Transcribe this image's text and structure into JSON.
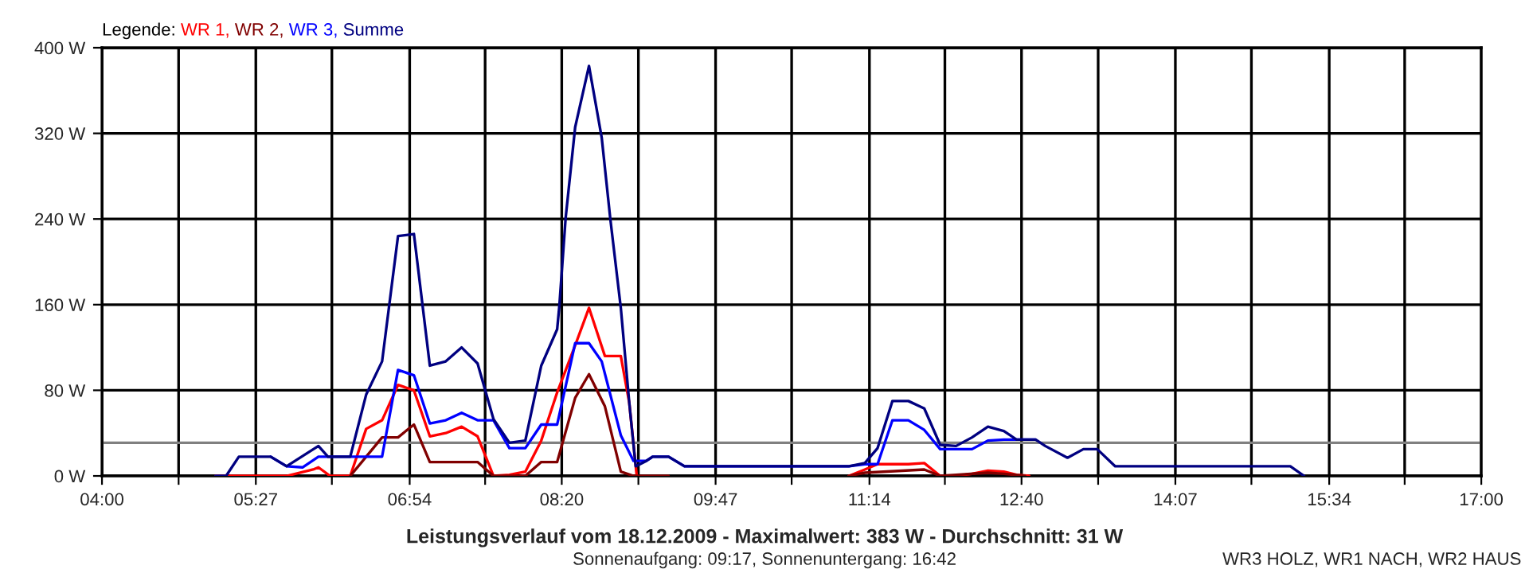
{
  "chart_data": {
    "type": "line",
    "title": "Leistungsverlauf vom 18.12.2009 - Maximalwert: 383 W - Durchschnitt: 31 W",
    "subtitle": "Sonnenaufgang: 09:17, Sonnenuntergang: 16:42",
    "annotations": [
      "WR3 HOLZ, WR1 NACH, WR2 HAUS"
    ],
    "legend_title": "Legende:",
    "legend": "top left",
    "grid": true,
    "marker": "none",
    "line_style": "solid",
    "xlim": [
      4,
      17
    ],
    "xticks": [
      {
        "value": 4,
        "label": "04:00"
      },
      {
        "value": 4.7222,
        "label": null
      },
      {
        "value": 5.45,
        "label": "05:27"
      },
      {
        "value": 6.1667,
        "label": null
      },
      {
        "value": 6.9,
        "label": "06:54"
      },
      {
        "value": 7.6111,
        "label": null
      },
      {
        "value": 8.3333,
        "label": "08:20"
      },
      {
        "value": 9.0556,
        "label": null
      },
      {
        "value": 9.7833,
        "label": "09:47"
      },
      {
        "value": 10.5,
        "label": null
      },
      {
        "value": 11.2333,
        "label": "11:14"
      },
      {
        "value": 11.9444,
        "label": null
      },
      {
        "value": 12.6667,
        "label": "12:40"
      },
      {
        "value": 13.3889,
        "label": null
      },
      {
        "value": 14.1167,
        "label": "14:07"
      },
      {
        "value": 14.8333,
        "label": null
      },
      {
        "value": 15.5667,
        "label": "15:34"
      },
      {
        "value": 16.2778,
        "label": null
      },
      {
        "value": 17,
        "label": "17:00"
      }
    ],
    "ylim": [
      0,
      400
    ],
    "yticks": [
      {
        "value": 0,
        "label": "0 W"
      },
      {
        "value": 80,
        "label": "80 W"
      },
      {
        "value": 160,
        "label": "160 W"
      },
      {
        "value": 240,
        "label": "240 W"
      },
      {
        "value": 320,
        "label": "320 W"
      },
      {
        "value": 400,
        "label": "400 W"
      }
    ],
    "ref_lines": [
      {
        "axis": "y",
        "value": 31,
        "color": "#808080"
      }
    ],
    "series": [
      {
        "name": "WR 1,",
        "color": "#ff0000",
        "x": [
          5.07,
          5.74,
          5.99,
          6.04,
          6.15,
          6.34,
          6.49,
          6.64,
          6.79,
          6.94,
          7.09,
          7.24,
          7.39,
          7.54,
          7.69,
          7.84,
          7.99,
          8.14,
          8.29,
          8.46,
          8.59,
          8.74,
          8.89,
          8.97,
          9.04,
          10.0,
          11.04,
          11.19,
          11.31,
          11.6,
          11.75,
          11.9,
          12.05,
          12.2,
          12.35,
          12.5,
          12.62,
          12.74
        ],
        "values": [
          0,
          0,
          6,
          8,
          0,
          0,
          44,
          52,
          85,
          80,
          37,
          40,
          46,
          37,
          0,
          1,
          4,
          33,
          78,
          122,
          157,
          112,
          112,
          68,
          0,
          null,
          0,
          6,
          11,
          11,
          12,
          0,
          0,
          2,
          5,
          4,
          1,
          0
        ]
      },
      {
        "name": "WR 2,",
        "color": "#800000",
        "x": [
          6.34,
          6.49,
          6.64,
          6.79,
          6.94,
          7.09,
          7.54,
          7.69,
          7.99,
          8.14,
          8.29,
          8.46,
          8.59,
          8.74,
          8.89,
          9.01,
          9.13,
          9.34,
          10.0,
          11.04,
          11.19,
          11.75,
          11.9,
          12.05,
          12.35,
          12.5,
          12.7
        ],
        "values": [
          0,
          18,
          36,
          36,
          48,
          13,
          13,
          0,
          0,
          13,
          13,
          73,
          95,
          65,
          4,
          0,
          0,
          0,
          null,
          0,
          3,
          6,
          0,
          1,
          3,
          2,
          0
        ]
      },
      {
        "name": "WR 3,",
        "color": "#0000ff",
        "x": [
          5.59,
          5.74,
          5.89,
          6.04,
          6.64,
          6.79,
          6.94,
          7.09,
          7.24,
          7.39,
          7.54,
          7.69,
          7.84,
          7.99,
          8.14,
          8.29,
          8.46,
          8.59,
          8.71,
          8.89,
          9.01,
          9.13,
          9.19,
          9.34,
          9.49,
          11.04,
          11.19,
          11.31,
          11.45,
          11.6,
          11.75,
          11.9,
          12.2,
          12.35,
          12.5,
          12.62,
          12.8
        ],
        "values": [
          18,
          9,
          8,
          18,
          18,
          99,
          94,
          49,
          52,
          59,
          52,
          52,
          26,
          26,
          48,
          48,
          124,
          124,
          107,
          38,
          14,
          14,
          18,
          18,
          9,
          9,
          11,
          11,
          52,
          52,
          43,
          25,
          25,
          33,
          34,
          34,
          34
        ]
      },
      {
        "name": "Summe",
        "color": "#000080",
        "x": [
          5.07,
          5.17,
          5.29,
          5.59,
          5.74,
          6.04,
          6.13,
          6.34,
          6.49,
          6.64,
          6.79,
          6.94,
          7.09,
          7.24,
          7.39,
          7.54,
          7.69,
          7.84,
          7.99,
          8.14,
          8.29,
          8.31,
          8.37,
          8.46,
          8.59,
          8.71,
          8.79,
          8.89,
          8.97,
          9.03,
          9.13,
          9.19,
          9.34,
          9.49,
          11.04,
          11.19,
          11.31,
          11.45,
          11.6,
          11.75,
          11.9,
          12.05,
          12.2,
          12.35,
          12.5,
          12.62,
          12.8,
          12.89,
          13.1,
          13.25,
          13.38,
          13.55,
          15.2,
          15.33
        ],
        "values": [
          0,
          0,
          18,
          18,
          9,
          28,
          18,
          18,
          76,
          107,
          224,
          226,
          103,
          107,
          120,
          105,
          53,
          31,
          33,
          103,
          137,
          158,
          241,
          326,
          383,
          316,
          241,
          157,
          68,
          9,
          14,
          18,
          18,
          9,
          9,
          12,
          26,
          70,
          70,
          63,
          29,
          28,
          36,
          46,
          42,
          34,
          34,
          28,
          17,
          25,
          25,
          9,
          9,
          0
        ]
      }
    ]
  }
}
